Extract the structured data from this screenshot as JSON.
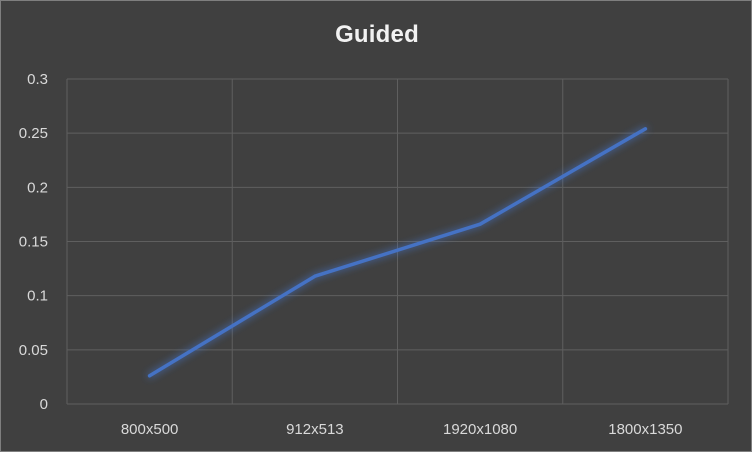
{
  "chart_data": {
    "type": "line",
    "title": "Guided",
    "categories": [
      "800x500",
      "912x513",
      "1920x1080",
      "1800x1350"
    ],
    "series": [
      {
        "values": [
          0.026,
          0.118,
          0.166,
          0.254
        ]
      }
    ],
    "ylim": [
      0,
      0.3
    ],
    "yticks": [
      "0",
      "0.05",
      "0.1",
      "0.15",
      "0.2",
      "0.25",
      "0.3"
    ],
    "grid": true,
    "legend": "none",
    "colors": {
      "background": "#404040",
      "grid": "#5f5f5f",
      "line": "#4472c4",
      "text": "#d9d9d9",
      "title": "#f2f2f2"
    }
  }
}
